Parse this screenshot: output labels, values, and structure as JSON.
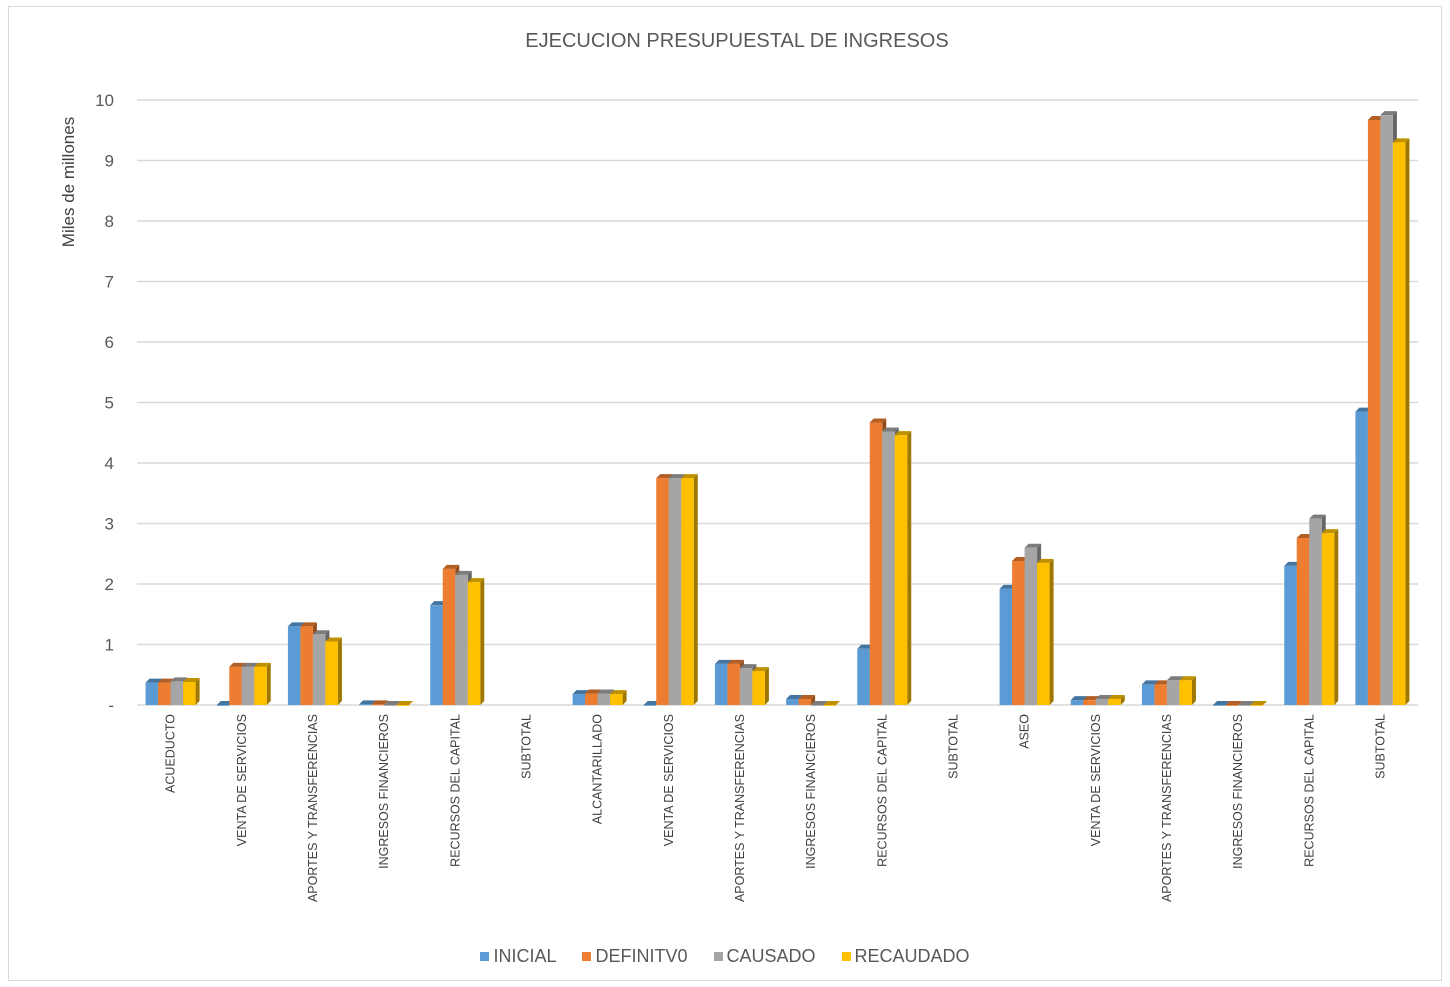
{
  "chart_data": {
    "type": "bar",
    "title": "EJECUCION PRESUPUESTAL DE INGRESOS",
    "xlabel": "",
    "ylabel": "Miles de millones",
    "ylim": [
      0,
      10
    ],
    "yticks": [
      "-",
      "1",
      "2",
      "3",
      "4",
      "5",
      "6",
      "7",
      "8",
      "9",
      "10"
    ],
    "grid": true,
    "legend_position": "bottom",
    "categories": [
      "ACUEDUCTO",
      "VENTA DE SERVICIOS",
      "APORTES Y TRANSFERENCIAS",
      "INGRESOS FINANCIEROS",
      "RECURSOS DEL CAPITAL",
      "SUBTOTAL",
      "ALCANTARILLADO",
      "VENTA DE SERVICIOS",
      "APORTES Y TRANSFERENCIAS",
      "INGRESOS FINANCIEROS",
      "RECURSOS DEL CAPITAL",
      "SUBTOTAL",
      "ASEO",
      "VENTA DE SERVICIOS",
      "APORTES Y TRANSFERENCIAS",
      "INGRESOS FINANCIEROS",
      "RECURSOS DEL CAPITAL",
      "SUBTOTAL"
    ],
    "series": [
      {
        "name": "INICIAL",
        "color": "#5b9bd5",
        "values": [
          0.37,
          0.0,
          1.3,
          0.01,
          1.65,
          0,
          0.18,
          0.0,
          0.68,
          0.1,
          0.93,
          0,
          1.92,
          0.08,
          0.34,
          0.0,
          2.3,
          4.85
        ]
      },
      {
        "name": "DEFINITV0",
        "color": "#ed7d31",
        "values": [
          0.37,
          0.63,
          1.3,
          0.01,
          2.25,
          0,
          0.19,
          3.75,
          0.68,
          0.1,
          4.67,
          0,
          2.38,
          0.08,
          0.34,
          0.0,
          2.76,
          9.67
        ]
      },
      {
        "name": "CAUSADO",
        "color": "#a5a5a5",
        "values": [
          0.39,
          0.63,
          1.17,
          0.0,
          2.15,
          0,
          0.19,
          3.75,
          0.61,
          0.0,
          4.52,
          0,
          2.6,
          0.1,
          0.41,
          0.0,
          3.08,
          9.75
        ]
      },
      {
        "name": "RECAUDADO",
        "color": "#ffc000",
        "values": [
          0.38,
          0.63,
          1.05,
          0.0,
          2.03,
          0,
          0.18,
          3.75,
          0.56,
          0.0,
          4.46,
          0,
          2.35,
          0.1,
          0.41,
          0.0,
          2.84,
          9.3
        ]
      }
    ]
  }
}
